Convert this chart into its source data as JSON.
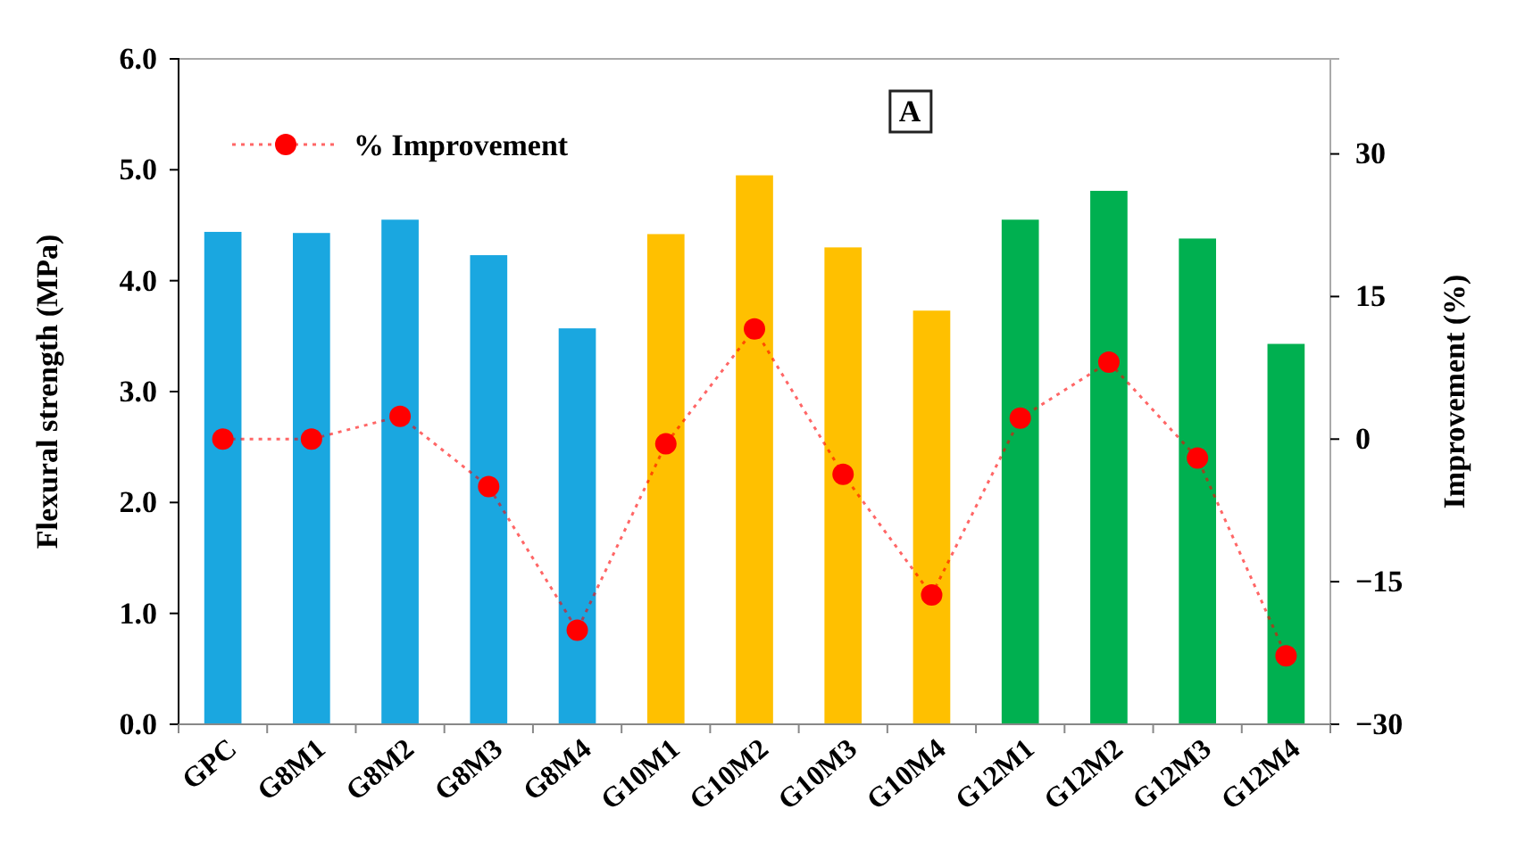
{
  "chart_data": {
    "type": "bar",
    "ylabel": "Flexural strength (MPa)",
    "y2label": "Improvement  (%)",
    "categories": [
      "GPC",
      "G8M1",
      "G8M2",
      "G8M3",
      "G8M4",
      "G10M1",
      "G10M2",
      "G10M3",
      "G10M4",
      "G12M1",
      "G12M2",
      "G12M3",
      "G12M4"
    ],
    "series": [
      {
        "colors": [
          "#1aa7e0",
          "#1aa7e0",
          "#1aa7e0",
          "#1aa7e0",
          "#1aa7e0",
          "#ffc000",
          "#ffc000",
          "#ffc000",
          "#ffc000",
          "#00b050",
          "#00b050",
          "#00b050",
          "#00b050"
        ],
        "values": [
          4.44,
          4.43,
          4.55,
          4.23,
          3.57,
          4.42,
          4.95,
          4.3,
          3.73,
          4.55,
          4.81,
          4.38,
          3.43
        ]
      },
      {
        "type": "line",
        "name": "% Improvement",
        "axis": "y2",
        "color": "#ff0000",
        "marker": "circle",
        "line_style": "dotted",
        "values": [
          0,
          0,
          2.4,
          -5.0,
          -20.1,
          -0.5,
          11.6,
          -3.7,
          -16.4,
          2.2,
          8.1,
          -2.0,
          -22.8
        ]
      }
    ],
    "ylim": [
      0,
      6
    ],
    "yticks": [
      {
        "value": 0,
        "label": "0.0"
      },
      {
        "value": 1,
        "label": "1.0"
      },
      {
        "value": 2,
        "label": "2.0"
      },
      {
        "value": 3,
        "label": "3.0"
      },
      {
        "value": 4,
        "label": "4.0"
      },
      {
        "value": 5,
        "label": "5.0"
      },
      {
        "value": 6,
        "label": "6.0"
      }
    ],
    "y2lim": [
      -30,
      40
    ],
    "y2ticks": [
      {
        "value": -30,
        "label": "−30"
      },
      {
        "value": -15,
        "label": "−15"
      },
      0,
      15,
      30
    ],
    "annotations": [
      "A"
    ],
    "legend": "top left"
  }
}
